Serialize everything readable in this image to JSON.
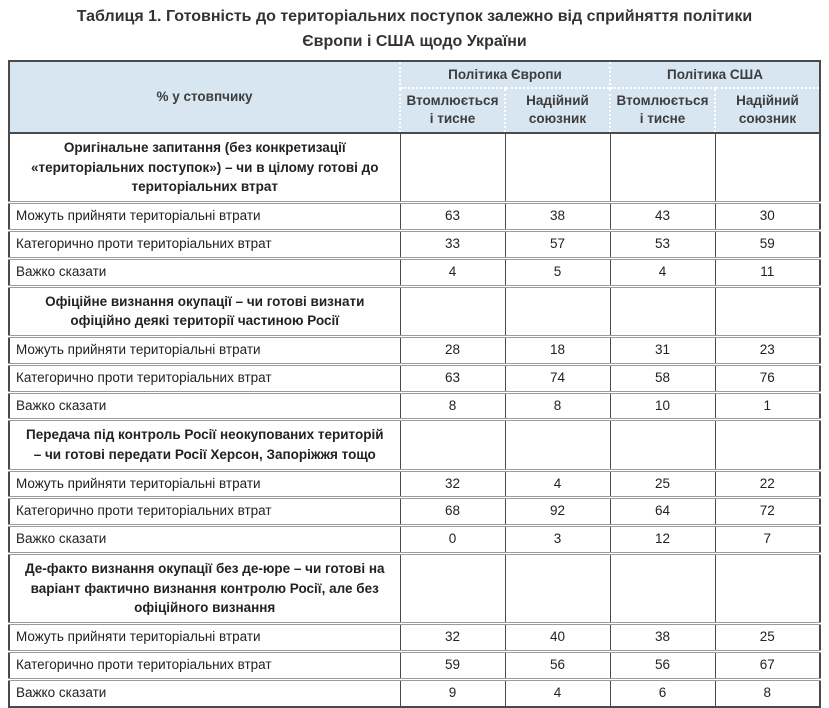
{
  "title": "Таблиця 1. Готовність до територіальних поступок залежно від сприйняття політики Європи і США щодо України",
  "colors": {
    "header_bg": "#d7e6f1",
    "border_dark": "#4a4a4a",
    "row_divider": "#9c9c9c",
    "text": "#222222",
    "title_color": "#333333",
    "header_text": "#3d3d3d"
  },
  "chart_data": {
    "type": "table",
    "title": "Таблиця 1. Готовність до територіальних поступок залежно від сприйняття політики Європи і США щодо України",
    "corner_label": "% у стовпчику",
    "col_groups": [
      {
        "label": "Політика Європи",
        "subcolumns": [
          "Втомлюється і тисне",
          "Надійний союзник"
        ]
      },
      {
        "label": "Політика США",
        "subcolumns": [
          "Втомлюється і тисне",
          "Надійний союзник"
        ]
      }
    ],
    "columns_flat": [
      "Політика Європи — Втомлюється і тисне",
      "Політика Європи — Надійний союзник",
      "Політика США — Втомлюється і тисне",
      "Політика США — Надійний союзник"
    ],
    "sections": [
      {
        "question": "Оригінальне запитання (без конкретизації «територіальних поступок») – чи в цілому готові до територіальних втрат",
        "rows": [
          {
            "label": "Можуть прийняти територіальні втрати",
            "values": [
              63,
              38,
              43,
              30
            ]
          },
          {
            "label": "Категорично проти територіальних втрат",
            "values": [
              33,
              57,
              53,
              59
            ]
          },
          {
            "label": "Важко сказати",
            "values": [
              4,
              5,
              4,
              11
            ]
          }
        ]
      },
      {
        "question": "Офіційне визнання окупації – чи готові визнати офіційно деякі території частиною Росії",
        "rows": [
          {
            "label": "Можуть прийняти територіальні втрати",
            "values": [
              28,
              18,
              31,
              23
            ]
          },
          {
            "label": "Категорично проти територіальних втрат",
            "values": [
              63,
              74,
              58,
              76
            ]
          },
          {
            "label": "Важко сказати",
            "values": [
              8,
              8,
              10,
              1
            ]
          }
        ]
      },
      {
        "question": "Передача під контроль Росії неокупованих територій – чи готові передати Росії Херсон, Запоріжжя тощо",
        "rows": [
          {
            "label": "Можуть прийняти територіальні втрати",
            "values": [
              32,
              4,
              25,
              22
            ]
          },
          {
            "label": "Категорично проти територіальних втрат",
            "values": [
              68,
              92,
              64,
              72
            ]
          },
          {
            "label": "Важко сказати",
            "values": [
              0,
              3,
              12,
              7
            ]
          }
        ]
      },
      {
        "question": "Де-факто визнання окупації без де-юре – чи готові на варіант фактично визнання контролю Росії, але без офіційного визнання",
        "rows": [
          {
            "label": "Можуть прийняти територіальні втрати",
            "values": [
              32,
              40,
              38,
              25
            ]
          },
          {
            "label": "Категорично проти територіальних втрат",
            "values": [
              59,
              56,
              56,
              67
            ]
          },
          {
            "label": "Важко сказати",
            "values": [
              9,
              4,
              6,
              8
            ]
          }
        ]
      }
    ]
  }
}
